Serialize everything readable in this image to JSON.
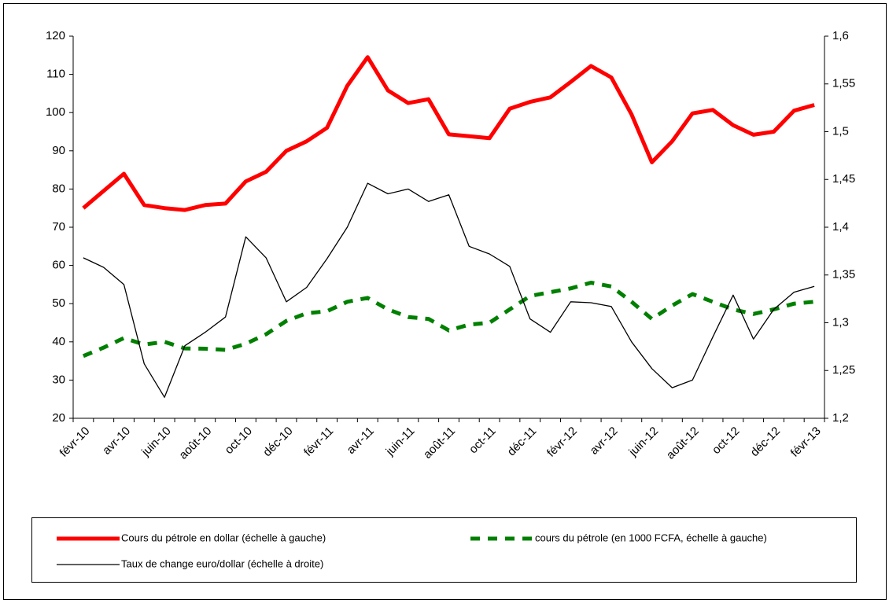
{
  "chart_data": {
    "type": "line",
    "categories": [
      "févr-10",
      null,
      "avr-10",
      null,
      "juin-10",
      null,
      "août-10",
      null,
      "oct-10",
      null,
      "déc-10",
      null,
      "févr-11",
      null,
      "avr-11",
      null,
      "juin-11",
      null,
      "août-11",
      null,
      "oct-11",
      null,
      "déc-11",
      null,
      "févr-12",
      null,
      "avr-12",
      null,
      "juin-12",
      null,
      "août-12",
      null,
      "oct-12",
      null,
      "déc-12",
      null,
      "févr-13"
    ],
    "series": [
      {
        "name": "Cours du pétrole en dollar (échelle à gauche)",
        "color": "#ff0000",
        "style": "solid",
        "values": [
          75,
          79.5,
          84,
          75.8,
          75,
          74.5,
          75.8,
          76.2,
          82,
          84.5,
          90,
          92.5,
          96,
          107,
          114.5,
          105.8,
          102.5,
          103.5,
          94.3,
          93.8,
          93.3,
          101,
          102.8,
          104,
          108,
          112.2,
          109.2,
          99.5,
          87,
          92.5,
          99.8,
          100.7,
          96.7,
          94.2,
          95,
          100.5,
          102
        ]
      },
      {
        "name": "cours du pétrole (en 1000 FCFA, échelle à gauche)",
        "color": "#008000",
        "style": "dashed",
        "values": [
          36.3,
          38.5,
          41,
          39.3,
          40,
          38.3,
          38.2,
          37.9,
          39.5,
          42,
          45.5,
          47.5,
          48,
          50.5,
          51.5,
          48.5,
          46.5,
          46,
          43,
          44.5,
          45,
          48.5,
          52,
          53,
          54,
          55.5,
          54.5,
          50.5,
          46,
          49.5,
          52.5,
          50.5,
          48.5,
          47.3,
          48.5,
          50,
          50.5
        ]
      },
      {
        "name": "Taux de change euro/dollar (échelle à droite)",
        "color": "#000000",
        "style": "thin",
        "axis": "y2",
        "values": [
          1.368,
          1.358,
          1.34,
          1.257,
          1.222,
          1.276,
          1.29,
          1.306,
          1.39,
          1.368,
          1.322,
          1.337,
          1.367,
          1.4,
          1.446,
          1.435,
          1.44,
          1.427,
          1.434,
          1.38,
          1.372,
          1.359,
          1.304,
          1.29,
          1.322,
          1.321,
          1.317,
          1.28,
          1.252,
          1.232,
          1.24,
          1.285,
          1.329,
          1.283,
          1.314,
          1.332,
          1.338
        ]
      }
    ],
    "ylim": [
      20,
      120
    ],
    "yticks": [
      20,
      30,
      40,
      50,
      60,
      70,
      80,
      90,
      100,
      110,
      120
    ],
    "y2lim": [
      1.2,
      1.6
    ],
    "y2ticks": [
      {
        "value": 1.2,
        "label": "1,2"
      },
      {
        "value": 1.25,
        "label": "1,25"
      },
      {
        "value": 1.3,
        "label": "1,3"
      },
      {
        "value": 1.35,
        "label": "1,35"
      },
      {
        "value": 1.4,
        "label": "1,4"
      },
      {
        "value": 1.45,
        "label": "1,45"
      },
      {
        "value": 1.5,
        "label": "1,5"
      },
      {
        "value": 1.55,
        "label": "1,55"
      },
      {
        "value": 1.6,
        "label": "1,6"
      }
    ],
    "legend": "bottom"
  }
}
